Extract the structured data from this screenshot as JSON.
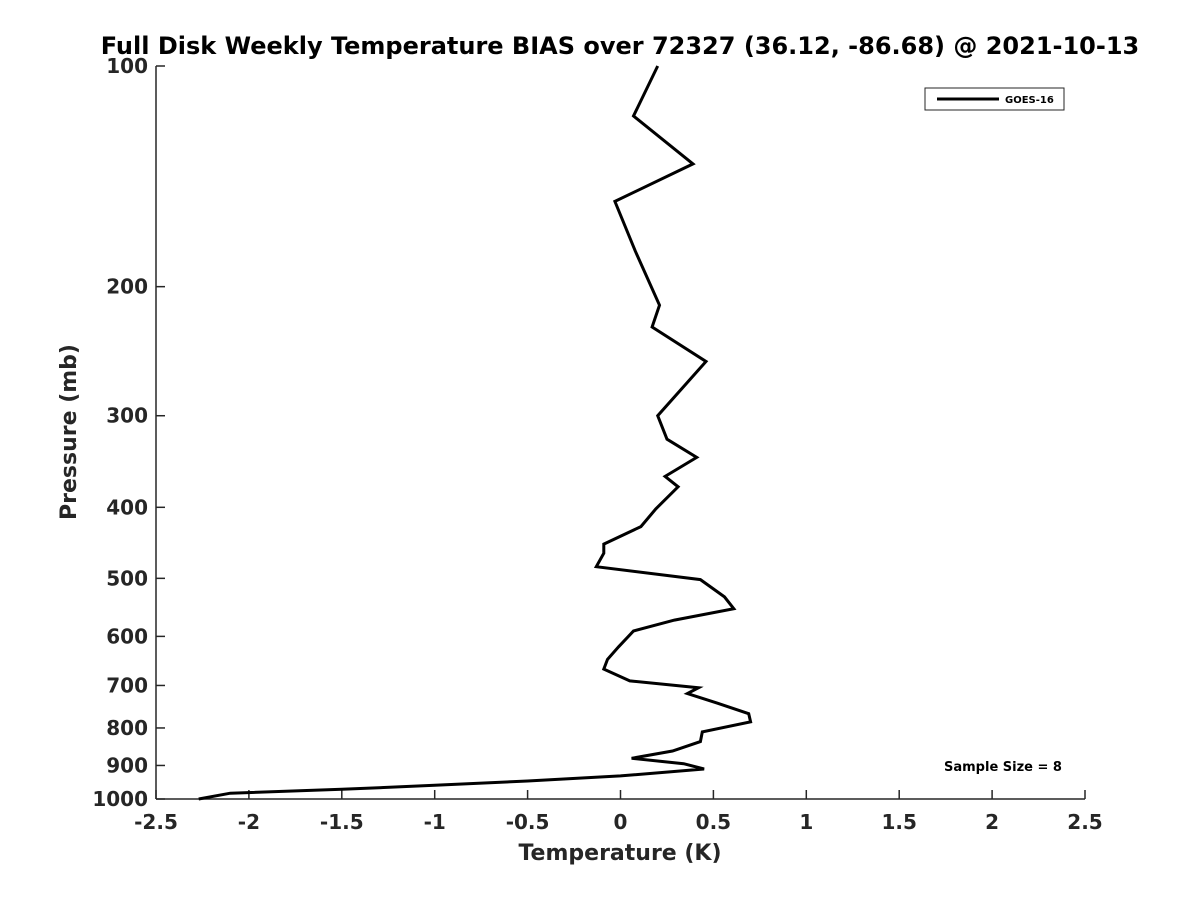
{
  "chart_data": {
    "type": "line",
    "title": "Full Disk Weekly Temperature BIAS over 72327 (36.12, -86.68) @ 2021-10-13",
    "xlabel": "Temperature (K)",
    "ylabel": "Pressure (mb)",
    "xlim": [
      -2.5,
      2.5
    ],
    "ylim": [
      100,
      1000
    ],
    "y_scale": "log",
    "y_reversed": true,
    "grid": false,
    "legend_placement": "top-right",
    "x_ticks": [
      -2.5,
      -2,
      -1.5,
      -1,
      -0.5,
      0,
      0.5,
      1,
      1.5,
      2,
      2.5
    ],
    "x_tick_labels": [
      "-2.5",
      "-2",
      "-1.5",
      "-1",
      "-0.5",
      "0",
      "0.5",
      "1",
      "1.5",
      "2",
      "2.5"
    ],
    "y_ticks": [
      100,
      200,
      300,
      400,
      500,
      600,
      700,
      800,
      900,
      1000
    ],
    "y_tick_labels": [
      "100",
      "200",
      "300",
      "400",
      "500",
      "600",
      "700",
      "800",
      "900",
      "1000"
    ],
    "series": [
      {
        "name": "GOES-16",
        "color": "#000000",
        "points": [
          [
            0.2,
            100
          ],
          [
            0.07,
            117
          ],
          [
            0.39,
            136
          ],
          [
            -0.03,
            153
          ],
          [
            0.08,
            179
          ],
          [
            0.21,
            212
          ],
          [
            0.17,
            227
          ],
          [
            0.46,
            253
          ],
          [
            0.2,
            300
          ],
          [
            0.25,
            323
          ],
          [
            0.41,
            342
          ],
          [
            0.24,
            363
          ],
          [
            0.31,
            375
          ],
          [
            0.19,
            402
          ],
          [
            0.11,
            425
          ],
          [
            -0.09,
            449
          ],
          [
            -0.09,
            462
          ],
          [
            -0.13,
            482
          ],
          [
            0.43,
            502
          ],
          [
            0.56,
            530
          ],
          [
            0.61,
            550
          ],
          [
            0.29,
            570
          ],
          [
            0.07,
            590
          ],
          [
            -0.01,
            620
          ],
          [
            -0.07,
            645
          ],
          [
            -0.09,
            665
          ],
          [
            0.05,
            690
          ],
          [
            0.42,
            705
          ],
          [
            0.36,
            718
          ],
          [
            0.52,
            740
          ],
          [
            0.69,
            765
          ],
          [
            0.7,
            785
          ],
          [
            0.44,
            810
          ],
          [
            0.43,
            835
          ],
          [
            0.28,
            860
          ],
          [
            0.06,
            880
          ],
          [
            0.34,
            895
          ],
          [
            0.45,
            910
          ],
          [
            0.0,
            930
          ],
          [
            -0.5,
            945
          ],
          [
            -1.0,
            958
          ],
          [
            -1.5,
            970
          ],
          [
            -2.1,
            982
          ],
          [
            -2.27,
            1000
          ]
        ]
      }
    ],
    "annotations": [
      "Sample Size = 8"
    ]
  }
}
